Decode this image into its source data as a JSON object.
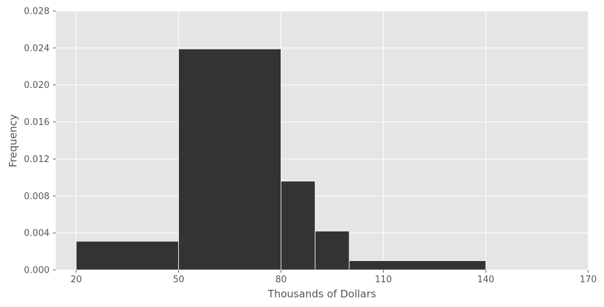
{
  "chart_data": {
    "type": "bar",
    "subtype": "histogram",
    "bins": [
      {
        "start": 20,
        "end": 50,
        "value": 0.0031
      },
      {
        "start": 50,
        "end": 80,
        "value": 0.0239
      },
      {
        "start": 80,
        "end": 90,
        "value": 0.0096
      },
      {
        "start": 90,
        "end": 100,
        "value": 0.0042
      },
      {
        "start": 100,
        "end": 140,
        "value": 0.001
      }
    ],
    "xlabel": "Thousands of Dollars",
    "ylabel": "Frequency",
    "xlim": [
      14,
      170
    ],
    "ylim": [
      0,
      0.028
    ],
    "xticks": [
      20,
      50,
      80,
      110,
      140,
      170
    ],
    "yticks": [
      0,
      0.004,
      0.008,
      0.012,
      0.016,
      0.02,
      0.024,
      0.028
    ],
    "xtick_labels": [
      "20",
      "50",
      "80",
      "110",
      "140",
      "170"
    ],
    "ytick_labels": [
      "0.000",
      "0.004",
      "0.008",
      "0.012",
      "0.016",
      "0.020",
      "0.024",
      "0.028"
    ],
    "grid": true,
    "colors": {
      "bar": "#333333",
      "background": "#e5e5e5",
      "grid": "#ffffff",
      "text": "#555555"
    }
  }
}
